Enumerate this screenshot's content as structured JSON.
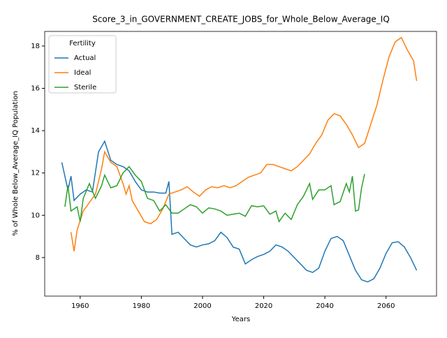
{
  "chart_data": {
    "type": "line",
    "title": "Score_3_in_GOVERNMENT_CREATE_JOBS_for_Whole_Below_Average_IQ",
    "x_label": "Years",
    "y_label": "% of Whole Below_Average_IQ Population",
    "legend_title": "Fertility",
    "legend": "upper left",
    "xlim": [
      1948.4,
      2076.5
    ],
    "ylim": [
      6.18,
      18.69
    ],
    "xticks": [
      1960,
      1980,
      2000,
      2020,
      2040,
      2060
    ],
    "yticks": [
      8,
      10,
      12,
      14,
      16,
      18
    ],
    "series": [
      {
        "name": "Actual",
        "color": "#1f77b4",
        "x": [
          1954,
          1956,
          1957,
          1958,
          1960,
          1962,
          1964,
          1966,
          1968,
          1970,
          1972,
          1974,
          1976,
          1978,
          1980,
          1982,
          1984,
          1986,
          1988,
          1989,
          1990,
          1992,
          1994,
          1996,
          1998,
          2000,
          2002,
          2004,
          2006,
          2008,
          2010,
          2012,
          2014,
          2016,
          2018,
          2020,
          2022,
          2024,
          2026,
          2028,
          2030,
          2032,
          2034,
          2036,
          2038,
          2040,
          2042,
          2044,
          2046,
          2048,
          2050,
          2052,
          2054,
          2056,
          2058,
          2060,
          2062,
          2064,
          2066,
          2068,
          2070
        ],
        "values": [
          12.5,
          11.2,
          11.85,
          10.7,
          11.0,
          11.2,
          11.1,
          13.0,
          13.5,
          12.6,
          12.4,
          12.3,
          12.1,
          11.6,
          11.2,
          11.1,
          11.1,
          11.05,
          11.05,
          11.6,
          9.1,
          9.2,
          8.9,
          8.6,
          8.5,
          8.6,
          8.65,
          8.8,
          9.2,
          8.95,
          8.5,
          8.4,
          7.7,
          7.9,
          8.05,
          8.15,
          8.3,
          8.6,
          8.5,
          8.3,
          8.0,
          7.7,
          7.4,
          7.3,
          7.5,
          8.3,
          8.9,
          9.0,
          8.8,
          8.1,
          7.4,
          6.95,
          6.85,
          7.0,
          7.5,
          8.2,
          8.7,
          8.75,
          8.5,
          8.0,
          7.4
        ]
      },
      {
        "name": "Ideal",
        "color": "#ff7f0e",
        "x": [
          1957,
          1958,
          1959,
          1961,
          1963,
          1965,
          1967,
          1968,
          1970,
          1972,
          1974,
          1975,
          1976,
          1977,
          1979,
          1981,
          1983,
          1985,
          1987,
          1989,
          1991,
          1993,
          1995,
          1997,
          1999,
          2001,
          2003,
          2005,
          2007,
          2009,
          2011,
          2013,
          2015,
          2017,
          2019,
          2021,
          2023,
          2025,
          2027,
          2029,
          2031,
          2033,
          2035,
          2037,
          2039,
          2041,
          2043,
          2045,
          2047,
          2049,
          2051,
          2053,
          2055,
          2057,
          2059,
          2061,
          2063,
          2065,
          2067,
          2069,
          2070
        ],
        "values": [
          9.2,
          8.3,
          9.3,
          10.2,
          10.6,
          11.0,
          12.2,
          13.0,
          12.5,
          12.3,
          11.5,
          11.0,
          11.4,
          10.7,
          10.2,
          9.7,
          9.6,
          9.8,
          10.3,
          11.0,
          11.1,
          11.2,
          11.35,
          11.1,
          10.9,
          11.2,
          11.35,
          11.3,
          11.4,
          11.3,
          11.4,
          11.6,
          11.8,
          11.9,
          12.0,
          12.4,
          12.4,
          12.3,
          12.2,
          12.1,
          12.3,
          12.6,
          12.9,
          13.4,
          13.8,
          14.5,
          14.8,
          14.7,
          14.3,
          13.8,
          13.2,
          13.4,
          14.3,
          15.2,
          16.4,
          17.5,
          18.2,
          18.4,
          17.8,
          17.3,
          16.35
        ]
      },
      {
        "name": "Sterile",
        "color": "#2ca02c",
        "x": [
          1955,
          1956,
          1957,
          1959,
          1960,
          1961,
          1963,
          1965,
          1967,
          1968,
          1970,
          1972,
          1974,
          1976,
          1978,
          1980,
          1982,
          1984,
          1986,
          1988,
          1990,
          1992,
          1994,
          1996,
          1998,
          2000,
          2002,
          2004,
          2006,
          2008,
          2010,
          2012,
          2014,
          2016,
          2018,
          2020,
          2022,
          2024,
          2025,
          2027,
          2029,
          2031,
          2033,
          2035,
          2036,
          2038,
          2040,
          2042,
          2043,
          2045,
          2047,
          2048,
          2049,
          2050,
          2051,
          2052,
          2053
        ],
        "values": [
          10.4,
          11.4,
          10.2,
          10.4,
          9.7,
          10.8,
          11.5,
          10.8,
          11.4,
          11.9,
          11.3,
          11.4,
          12.0,
          12.3,
          11.9,
          11.6,
          10.8,
          10.7,
          10.2,
          10.5,
          10.1,
          10.1,
          10.3,
          10.5,
          10.4,
          10.1,
          10.35,
          10.3,
          10.2,
          10.0,
          10.05,
          10.1,
          9.95,
          10.45,
          10.4,
          10.45,
          10.05,
          10.2,
          9.7,
          10.1,
          9.8,
          10.5,
          10.9,
          11.5,
          10.75,
          11.2,
          11.2,
          11.4,
          10.5,
          10.65,
          11.5,
          11.1,
          11.85,
          10.2,
          10.25,
          11.3,
          11.95
        ]
      }
    ]
  }
}
